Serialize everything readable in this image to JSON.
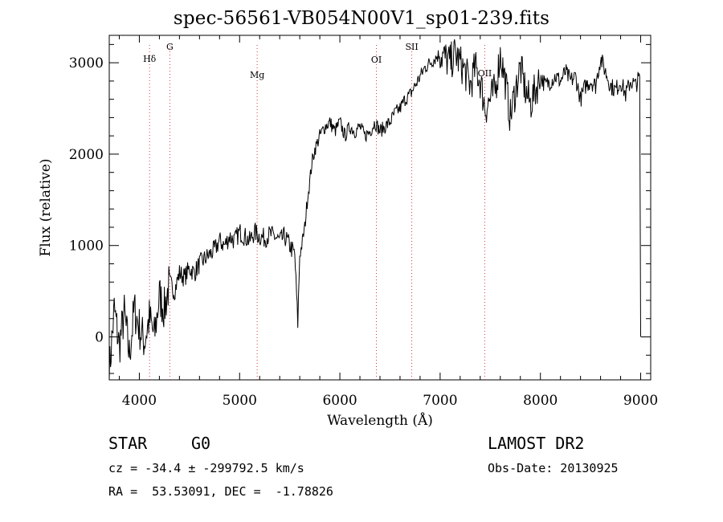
{
  "chart_data": {
    "type": "line",
    "title": "spec-56561-VB054N00V1_sp01-239.fits",
    "xlabel": "Wavelength (Å)",
    "ylabel": "Flux (relative)",
    "xlim": [
      3700,
      9100
    ],
    "ylim": [
      -470,
      3300
    ],
    "x_ticks": [
      4000,
      5000,
      6000,
      7000,
      8000,
      9000
    ],
    "y_ticks": [
      0,
      1000,
      2000,
      3000
    ],
    "line_markers": [
      {
        "label": "Hδ",
        "x": 4102
      },
      {
        "label": "G",
        "x": 4304
      },
      {
        "label": "Mg",
        "x": 5175
      },
      {
        "label": "OI",
        "x": 6364
      },
      {
        "label": "SII",
        "x": 6717
      },
      {
        "label": "OII",
        "x": 7445
      }
    ],
    "series": [
      {
        "x": [
          3700,
          3750,
          3800,
          3850,
          3900,
          3950,
          4000,
          4050,
          4100,
          4150,
          4200,
          4250,
          4300,
          4350,
          4400,
          4450,
          4500,
          4550,
          4600,
          4650,
          4700,
          4750,
          4800,
          4850,
          4900,
          4950,
          5000,
          5050,
          5100,
          5150,
          5200,
          5250,
          5300,
          5350,
          5400,
          5450,
          5500,
          5550,
          5580,
          5600,
          5620,
          5650,
          5680,
          5700,
          5720,
          5750,
          5800,
          5850,
          5900,
          5950,
          6000,
          6050,
          6100,
          6150,
          6200,
          6250,
          6300,
          6350,
          6400,
          6450,
          6500,
          6550,
          6600,
          6650,
          6700,
          6750,
          6800,
          6850,
          6900,
          6950,
          7000,
          7050,
          7100,
          7150,
          7200,
          7250,
          7300,
          7350,
          7400,
          7450,
          7500,
          7550,
          7600,
          7650,
          7700,
          7750,
          7800,
          7850,
          7900,
          7950,
          8000,
          8050,
          8100,
          8150,
          8200,
          8250,
          8300,
          8350,
          8400,
          8450,
          8500,
          8550,
          8600,
          8650,
          8700,
          8750,
          8800,
          8850,
          8900,
          8950,
          8990,
          9000
        ],
        "y": [
          -400,
          300,
          -100,
          250,
          -200,
          300,
          100,
          -50,
          200,
          0,
          450,
          300,
          600,
          500,
          700,
          650,
          750,
          700,
          800,
          850,
          900,
          950,
          1050,
          1000,
          1100,
          1050,
          1150,
          1100,
          1050,
          1150,
          1100,
          1080,
          1120,
          1100,
          1050,
          1100,
          1000,
          900,
          150,
          900,
          1000,
          1200,
          1550,
          1700,
          1900,
          2050,
          2200,
          2300,
          2350,
          2250,
          2350,
          2200,
          2300,
          2250,
          2300,
          2200,
          2250,
          2350,
          2250,
          2300,
          2350,
          2450,
          2500,
          2600,
          2650,
          2750,
          2850,
          2950,
          3000,
          3050,
          3100,
          3050,
          3000,
          3100,
          3000,
          2900,
          2750,
          2950,
          2800,
          2500,
          2600,
          2700,
          3100,
          2800,
          2400,
          2700,
          2950,
          2700,
          2550,
          2700,
          2850,
          2750,
          2800,
          2850,
          2800,
          2900,
          2800,
          2850,
          2600,
          2750,
          2800,
          2750,
          3050,
          2900,
          2750,
          2700,
          2800,
          2650,
          2800,
          2750,
          2850,
          0
        ]
      }
    ]
  },
  "footer": {
    "object_class": "STAR",
    "subclass": "G0",
    "survey": "LAMOST DR2",
    "cz": "cz = -34.4 ± -299792.5 km/s",
    "obs_date": "Obs-Date: 20130925",
    "radec": "RA =  53.53091, DEC =  -1.78826"
  }
}
